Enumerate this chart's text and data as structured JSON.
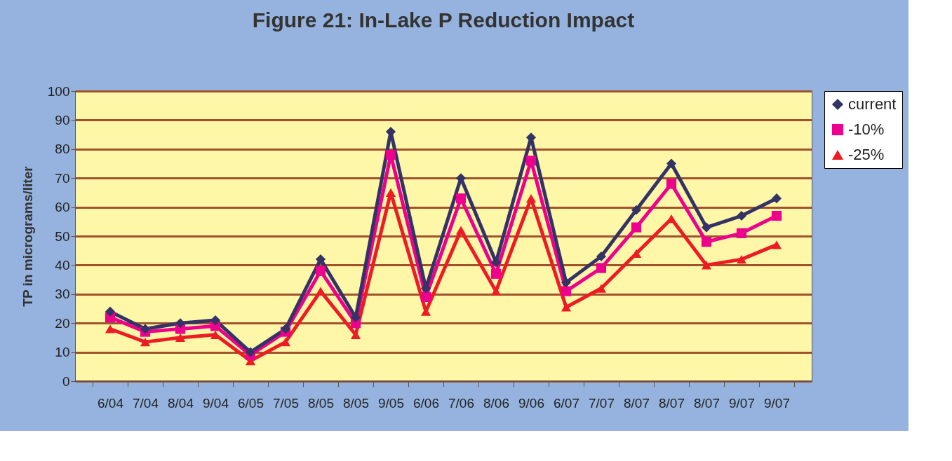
{
  "chart_data": {
    "type": "line",
    "title": "Figure 21: In-Lake P Reduction Impact",
    "ylabel": "TP in micrograms/liter",
    "categories": [
      "6/04",
      "7/04",
      "8/04",
      "9/04",
      "6/05",
      "7/05",
      "8/05",
      "8/05",
      "9/05",
      "6/06",
      "7/06",
      "8/06",
      "9/06",
      "6/07",
      "7/07",
      "8/07",
      "8/07",
      "8/07",
      "9/07",
      "9/07"
    ],
    "series": [
      {
        "name": "current",
        "color": "#333366",
        "marker": "diamond",
        "values": [
          24,
          18,
          20,
          21,
          10,
          18,
          42,
          22,
          86,
          32,
          70,
          41,
          84,
          34,
          43,
          59,
          75,
          53,
          57,
          63
        ]
      },
      {
        "name": "-10%",
        "color": "#ec008c",
        "marker": "square",
        "values": [
          22,
          17,
          18,
          19,
          9,
          17,
          38,
          20,
          78,
          29,
          63,
          37,
          76,
          31,
          39,
          53,
          68,
          48,
          51,
          57
        ]
      },
      {
        "name": "-25%",
        "color": "#ed1c24",
        "marker": "triangle",
        "values": [
          18,
          13.5,
          15,
          16,
          7,
          13.5,
          31,
          16,
          65,
          24,
          52,
          31,
          63,
          25.5,
          32,
          44,
          56,
          40,
          42,
          47
        ]
      }
    ],
    "ylim": [
      0,
      100
    ],
    "yticks": [
      0,
      10,
      20,
      30,
      40,
      50,
      60,
      70,
      80,
      90,
      100
    ],
    "grid": "y",
    "legend": "right",
    "line_style": "solid"
  }
}
